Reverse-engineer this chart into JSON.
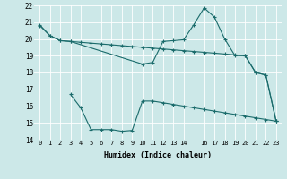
{
  "xlabel": "Humidex (Indice chaleur)",
  "background_color": "#cce8e8",
  "line_color": "#1a6b6b",
  "grid_color": "#b0d8d8",
  "xlim": [
    -0.5,
    23.5
  ],
  "ylim": [
    14,
    22
  ],
  "xticks": [
    0,
    1,
    2,
    3,
    4,
    5,
    6,
    7,
    8,
    9,
    10,
    11,
    12,
    13,
    14,
    16,
    17,
    18,
    19,
    20,
    21,
    22,
    23
  ],
  "yticks": [
    14,
    15,
    16,
    17,
    18,
    19,
    20,
    21,
    22
  ],
  "line1_x": [
    0,
    1,
    2,
    3,
    4,
    5,
    6,
    7,
    8,
    9,
    10,
    11,
    12,
    13,
    14,
    15,
    16,
    17,
    18,
    19,
    20,
    21,
    22,
    23
  ],
  "line1_y": [
    20.8,
    20.2,
    19.9,
    19.85,
    19.8,
    19.75,
    19.7,
    19.65,
    19.6,
    19.55,
    19.5,
    19.45,
    19.4,
    19.35,
    19.3,
    19.25,
    19.2,
    19.15,
    19.1,
    19.05,
    19.0,
    18.0,
    17.85,
    15.1
  ],
  "line2_x": [
    0,
    1,
    2,
    3,
    10,
    11,
    12,
    13,
    14,
    15,
    16,
    17,
    18,
    19,
    20,
    21,
    22,
    23
  ],
  "line2_y": [
    20.85,
    20.2,
    19.9,
    19.85,
    18.5,
    18.6,
    19.85,
    19.9,
    19.95,
    20.85,
    21.85,
    21.3,
    20.0,
    19.0,
    19.0,
    18.0,
    17.85,
    15.1
  ],
  "line3_x": [
    3,
    4,
    5,
    6,
    7,
    8,
    9,
    10,
    11,
    12,
    13,
    14,
    15,
    16,
    17,
    18,
    19,
    20,
    21,
    22,
    23
  ],
  "line3_y": [
    16.7,
    15.9,
    14.6,
    14.6,
    14.6,
    14.5,
    14.55,
    16.3,
    16.3,
    16.2,
    16.1,
    16.0,
    15.9,
    15.8,
    15.7,
    15.6,
    15.5,
    15.4,
    15.3,
    15.2,
    15.1
  ]
}
